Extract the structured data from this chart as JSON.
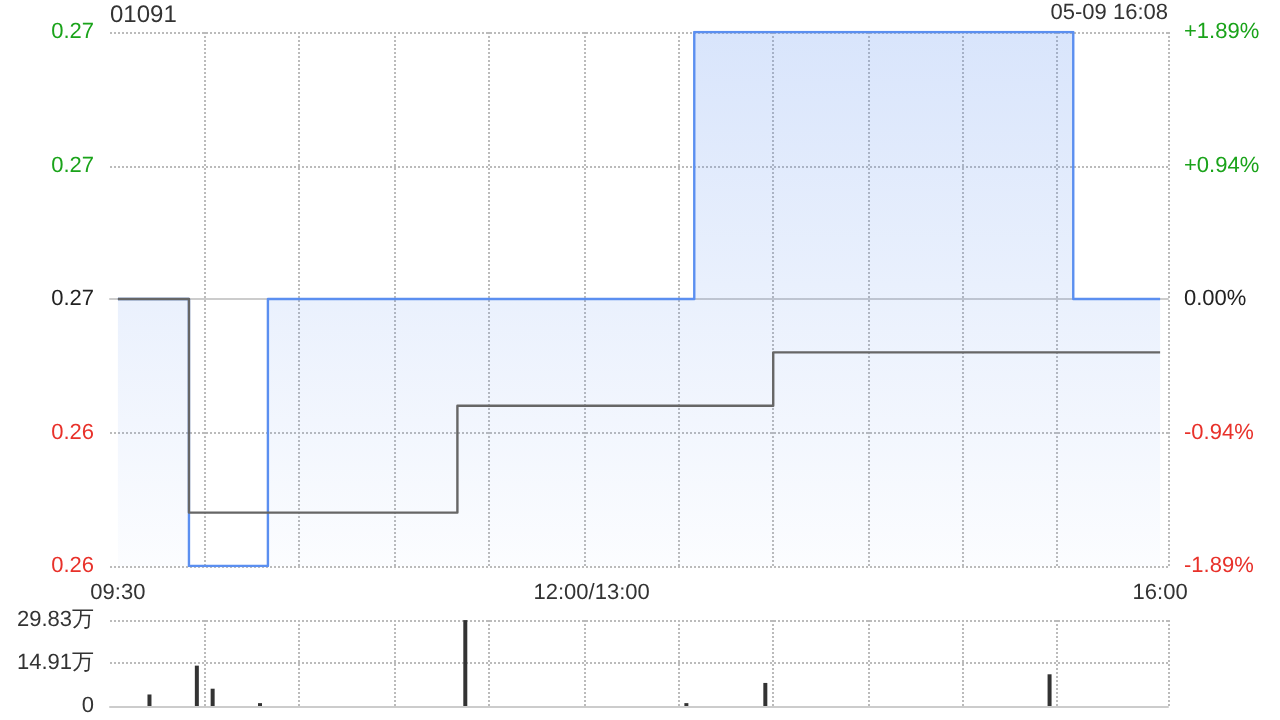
{
  "chart_data": [
    {
      "type": "step",
      "title": "01091",
      "annotations": [
        "05-09 16:08"
      ],
      "categories": [
        "09:30",
        null,
        null,
        null,
        null,
        null,
        null,
        null,
        null,
        null,
        null,
        null,
        null,
        null,
        null,
        null,
        null,
        null,
        null,
        null,
        null,
        null,
        null,
        null,
        null,
        null,
        null,
        null,
        null,
        null,
        "12:00/13:00",
        null,
        null,
        null,
        null,
        null,
        null,
        null,
        null,
        null,
        null,
        null,
        null,
        null,
        null,
        null,
        null,
        null,
        null,
        null,
        null,
        null,
        null,
        null,
        null,
        null,
        null,
        null,
        null,
        null,
        null,
        null,
        null,
        null,
        null,
        null,
        "16:00"
      ],
      "series": [
        {
          "type": "area",
          "color": "#5b8ff0",
          "values": [
            0.265,
            0.265,
            0.265,
            0.265,
            0.265,
            0.26,
            0.26,
            0.26,
            0.26,
            0.26,
            0.265,
            0.265,
            0.265,
            0.265,
            0.265,
            0.265,
            0.265,
            0.265,
            0.265,
            0.265,
            0.265,
            0.265,
            0.265,
            0.265,
            0.265,
            0.265,
            0.265,
            0.265,
            0.265,
            0.265,
            0.265,
            0.265,
            0.265,
            0.265,
            0.265,
            0.265,
            0.265,
            0.27,
            0.27,
            0.27,
            0.27,
            0.27,
            0.27,
            0.27,
            0.27,
            0.27,
            0.27,
            0.27,
            0.27,
            0.27,
            0.27,
            0.27,
            0.27,
            0.27,
            0.27,
            0.27,
            0.27,
            0.27,
            0.27,
            0.27,
            0.27,
            0.265,
            0.265,
            0.265,
            0.265,
            0.265,
            0.265
          ]
        },
        {
          "color": "#666666",
          "values": [
            0.265,
            0.265,
            0.265,
            0.265,
            0.265,
            0.261,
            0.261,
            0.261,
            0.261,
            0.261,
            0.261,
            0.261,
            0.261,
            0.261,
            0.261,
            0.261,
            0.261,
            0.261,
            0.261,
            0.261,
            0.261,
            0.261,
            0.263,
            0.263,
            0.263,
            0.263,
            0.263,
            0.263,
            0.263,
            0.263,
            0.263,
            0.263,
            0.263,
            0.263,
            0.263,
            0.263,
            0.263,
            0.263,
            0.263,
            0.263,
            0.263,
            0.263,
            0.264,
            0.264,
            0.264,
            0.264,
            0.264,
            0.264,
            0.264,
            0.264,
            0.264,
            0.264,
            0.264,
            0.264,
            0.264,
            0.264,
            0.264,
            0.264,
            0.264,
            0.264,
            0.264,
            0.264,
            0.264,
            0.264,
            0.264,
            0.264,
            0.264
          ]
        }
      ],
      "ylim": [
        0.26,
        0.27
      ],
      "yticks": [
        {
          "value": 0.26,
          "label": "0.26"
        },
        {
          "value": 0.2625,
          "label": "0.26"
        },
        {
          "value": 0.265,
          "label": "0.27"
        },
        {
          "value": 0.2675,
          "label": "0.27"
        },
        {
          "value": 0.27,
          "label": "0.27"
        }
      ],
      "y2lim": [
        -1.89,
        1.89
      ],
      "y2ticks": [
        {
          "value": -1.89,
          "label": "-1.89%"
        },
        {
          "value": -0.94,
          "label": "-0.94%"
        },
        {
          "value": 0,
          "label": "0.00%"
        },
        {
          "value": 0.94,
          "label": "+0.94%"
        },
        {
          "value": 1.89,
          "label": "+1.89%"
        }
      ],
      "grid": true
    },
    {
      "type": "bar",
      "color": "#333333",
      "categories": [
        null,
        null,
        null,
        null,
        null,
        null,
        null,
        null,
        null,
        null,
        null,
        null,
        null,
        null,
        null,
        null,
        null,
        null,
        null,
        null,
        null,
        null,
        null,
        null,
        null,
        null,
        null,
        null,
        null,
        null,
        null,
        null,
        null,
        null,
        null,
        null,
        null,
        null,
        null,
        null,
        null,
        null,
        null,
        null,
        null,
        null,
        null,
        null,
        null,
        null,
        null,
        null,
        null,
        null,
        null,
        null,
        null,
        null,
        null,
        null,
        null,
        null,
        null,
        null,
        null,
        null,
        null
      ],
      "values": [
        0,
        0,
        4,
        0,
        0,
        14,
        6,
        0,
        0,
        1,
        0,
        0,
        0,
        0,
        0,
        0,
        0,
        0,
        0,
        0,
        0,
        0,
        29.8,
        0,
        0,
        0,
        0,
        0,
        0,
        0,
        0,
        0,
        0,
        0,
        0,
        0,
        1,
        0,
        0,
        0,
        0,
        8,
        0,
        0,
        0,
        0,
        0,
        0,
        0,
        0,
        0,
        0,
        0,
        0,
        0,
        0,
        0,
        0,
        0,
        11,
        0,
        0,
        0,
        0,
        0,
        0,
        0
      ],
      "ylim": [
        0,
        29.83
      ],
      "yticks": [
        0,
        {
          "value": 14.91,
          "label": "14.91万"
        },
        {
          "value": 29.83,
          "label": "29.83万"
        }
      ],
      "grid": true
    }
  ]
}
